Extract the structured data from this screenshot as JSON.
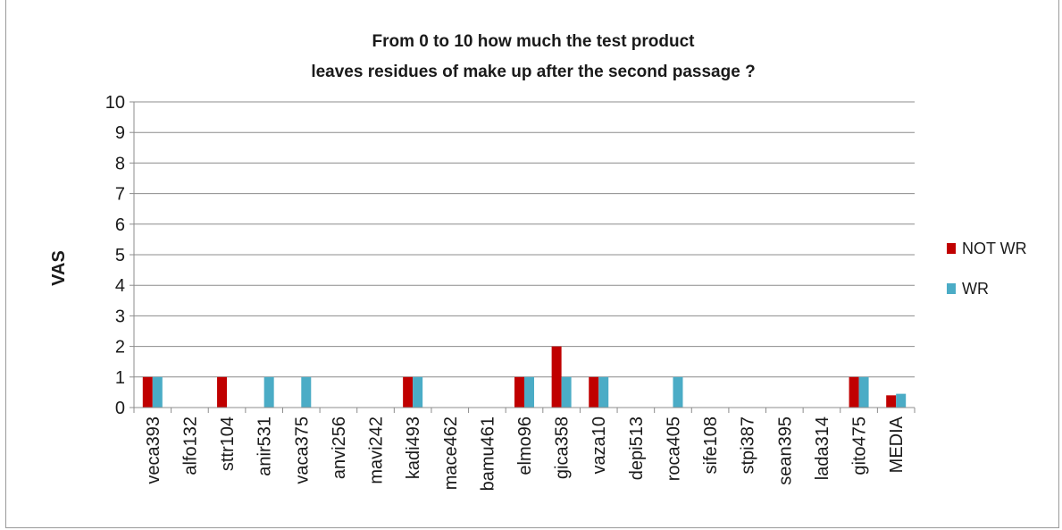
{
  "chart_data": {
    "type": "bar",
    "title_lines": [
      "From 0 to 10  how much the test product",
      "leaves residues of make up after the second passage ?"
    ],
    "xlabel": "",
    "ylabel": "VAS",
    "ylim": [
      0,
      10
    ],
    "yticks": [
      0,
      1,
      2,
      3,
      4,
      5,
      6,
      7,
      8,
      9,
      10
    ],
    "grid": true,
    "legend_position": "right",
    "categories": [
      "veca393",
      "alfo132",
      "sttr104",
      "anir531",
      "vaca375",
      "anvi256",
      "mavi242",
      "kadi493",
      "mace462",
      "bamu461",
      "elmo96",
      "gica358",
      "vaza10",
      "depi513",
      "roca405",
      "sife108",
      "stpi387",
      "sean395",
      "lada314",
      "gito475",
      "MEDIA"
    ],
    "series": [
      {
        "name": "NOT WR",
        "color": "#c00000",
        "values": [
          1,
          0,
          1,
          0,
          0,
          0,
          0,
          1,
          0,
          0,
          1,
          2,
          1,
          0,
          0,
          0,
          0,
          0,
          0,
          1,
          0.4
        ]
      },
      {
        "name": "WR",
        "color": "#4bacc6",
        "values": [
          1,
          0,
          0,
          1,
          1,
          0,
          0,
          1,
          0,
          0,
          1,
          1,
          1,
          0,
          1,
          0,
          0,
          0,
          0,
          1,
          0.45
        ]
      }
    ]
  }
}
